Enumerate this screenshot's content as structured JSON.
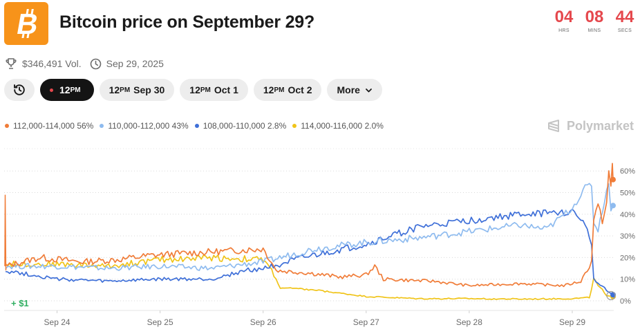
{
  "header": {
    "title": "Bitcoin price on September 29?",
    "logo_icon": "bitcoin-icon",
    "countdown": [
      {
        "value": "04",
        "label": "HRS"
      },
      {
        "value": "08",
        "label": "MINS"
      },
      {
        "value": "44",
        "label": "SECS"
      }
    ]
  },
  "meta": {
    "volume": "$346,491 Vol.",
    "date": "Sep 29, 2025",
    "volume_icon": "trophy-icon",
    "date_icon": "clock-icon"
  },
  "pills": {
    "history_icon": "history-icon",
    "items": [
      {
        "time": "12",
        "ampm": "PM",
        "date": "",
        "active": true
      },
      {
        "time": "12",
        "ampm": "PM",
        "date": "Sep 30",
        "active": false
      },
      {
        "time": "12",
        "ampm": "PM",
        "date": "Oct 1",
        "active": false
      },
      {
        "time": "12",
        "ampm": "PM",
        "date": "Oct 2",
        "active": false
      }
    ],
    "more_label": "More"
  },
  "brand": "Polymarket",
  "gain_label": "+ $1",
  "colors": {
    "orange": "#f07c38",
    "lightblue": "#8ebbef",
    "blue": "#3e6fd8",
    "yellow": "#f0c419",
    "green": "#2fae60",
    "accent_red": "#e5484d"
  },
  "chart_data": {
    "type": "line",
    "title": "",
    "xlabel": "",
    "ylabel": "",
    "x_ticks": [
      "Sep 24",
      "Sep 25",
      "Sep 26",
      "Sep 27",
      "Sep 28",
      "Sep 29"
    ],
    "y_ticks": [
      "0%",
      "10%",
      "20%",
      "30%",
      "40%",
      "50%",
      "60%"
    ],
    "ylim": [
      0,
      65
    ],
    "grid": true,
    "legend_position": "top-left",
    "x_start": "Sep 23, 2025 12:00",
    "x_end": "Sep 29, 2025 09:30",
    "series": [
      {
        "name": "112,000-114,000",
        "legend_value": "56%",
        "color": "#f07c38",
        "points": [
          [
            "Sep 23, 2025 12:00",
            16
          ],
          [
            "Sep 23, 2025 20:00",
            20
          ],
          [
            "Sep 24, 2025 06:00",
            18
          ],
          [
            "Sep 24, 2025 14:00",
            19
          ],
          [
            "Sep 24, 2025 22:00",
            21
          ],
          [
            "Sep 25, 2025 06:00",
            22
          ],
          [
            "Sep 25, 2025 16:00",
            23
          ],
          [
            "Sep 26, 2025 00:00",
            24
          ],
          [
            "Sep 26, 2025 02:00",
            18
          ],
          [
            "Sep 26, 2025 03:00",
            14
          ],
          [
            "Sep 26, 2025 10:00",
            13
          ],
          [
            "Sep 26, 2025 18:00",
            11
          ],
          [
            "Sep 27, 2025 00:00",
            12
          ],
          [
            "Sep 27, 2025 02:00",
            16
          ],
          [
            "Sep 27, 2025 04:00",
            10
          ],
          [
            "Sep 27, 2025 16:00",
            9
          ],
          [
            "Sep 28, 2025 00:00",
            7
          ],
          [
            "Sep 28, 2025 12:00",
            8
          ],
          [
            "Sep 28, 2025 22:00",
            7
          ],
          [
            "Sep 29, 2025 02:00",
            9
          ],
          [
            "Sep 29, 2025 04:30",
            18
          ],
          [
            "Sep 29, 2025 05:00",
            38
          ],
          [
            "Sep 29, 2025 06:00",
            44
          ],
          [
            "Sep 29, 2025 07:00",
            37
          ],
          [
            "Sep 29, 2025 08:00",
            45
          ],
          [
            "Sep 29, 2025 08:30",
            60
          ],
          [
            "Sep 29, 2025 09:00",
            52
          ],
          [
            "Sep 29, 2025 09:20",
            63
          ],
          [
            "Sep 29, 2025 09:30",
            56
          ]
        ]
      },
      {
        "name": "110,000-112,000",
        "legend_value": "43%",
        "color": "#8ebbef",
        "points": [
          [
            "Sep 23, 2025 12:00",
            16
          ],
          [
            "Sep 24, 2025 00:00",
            16
          ],
          [
            "Sep 24, 2025 12:00",
            15
          ],
          [
            "Sep 25, 2025 00:00",
            16
          ],
          [
            "Sep 25, 2025 12:00",
            15
          ],
          [
            "Sep 26, 2025 00:00",
            18
          ],
          [
            "Sep 26, 2025 12:00",
            24
          ],
          [
            "Sep 27, 2025 00:00",
            27
          ],
          [
            "Sep 27, 2025 12:00",
            29
          ],
          [
            "Sep 28, 2025 00:00",
            32
          ],
          [
            "Sep 28, 2025 12:00",
            35
          ],
          [
            "Sep 28, 2025 18:00",
            33
          ],
          [
            "Sep 29, 2025 00:00",
            43
          ],
          [
            "Sep 29, 2025 03:00",
            52
          ],
          [
            "Sep 29, 2025 04:30",
            54
          ],
          [
            "Sep 29, 2025 05:00",
            36
          ],
          [
            "Sep 29, 2025 06:00",
            33
          ],
          [
            "Sep 29, 2025 07:00",
            42
          ],
          [
            "Sep 29, 2025 08:00",
            50
          ],
          [
            "Sep 29, 2025 08:30",
            55
          ],
          [
            "Sep 29, 2025 09:00",
            43
          ],
          [
            "Sep 29, 2025 09:30",
            44
          ]
        ]
      },
      {
        "name": "108,000-110,000",
        "legend_value": "2.8%",
        "color": "#3e6fd8",
        "points": [
          [
            "Sep 23, 2025 12:00",
            14
          ],
          [
            "Sep 24, 2025 00:00",
            10
          ],
          [
            "Sep 24, 2025 12:00",
            9
          ],
          [
            "Sep 25, 2025 00:00",
            10
          ],
          [
            "Sep 25, 2025 12:00",
            10
          ],
          [
            "Sep 25, 2025 20:00",
            14
          ],
          [
            "Sep 26, 2025 00:00",
            15
          ],
          [
            "Sep 26, 2025 12:00",
            21
          ],
          [
            "Sep 27, 2025 00:00",
            26
          ],
          [
            "Sep 27, 2025 12:00",
            34
          ],
          [
            "Sep 28, 2025 00:00",
            37
          ],
          [
            "Sep 28, 2025 12:00",
            40
          ],
          [
            "Sep 29, 2025 00:00",
            41
          ],
          [
            "Sep 29, 2025 02:00",
            38
          ],
          [
            "Sep 29, 2025 04:00",
            30
          ],
          [
            "Sep 29, 2025 04:30",
            25
          ],
          [
            "Sep 29, 2025 05:00",
            11
          ],
          [
            "Sep 29, 2025 06:00",
            8
          ],
          [
            "Sep 29, 2025 07:30",
            6
          ],
          [
            "Sep 29, 2025 08:30",
            4
          ],
          [
            "Sep 29, 2025 09:30",
            2.8
          ]
        ]
      },
      {
        "name": "114,000-116,000",
        "legend_value": "2.0%",
        "color": "#f0c419",
        "points": [
          [
            "Sep 23, 2025 12:00",
            17
          ],
          [
            "Sep 24, 2025 00:00",
            17
          ],
          [
            "Sep 24, 2025 12:00",
            16
          ],
          [
            "Sep 25, 2025 00:00",
            19
          ],
          [
            "Sep 25, 2025 12:00",
            20
          ],
          [
            "Sep 26, 2025 00:00",
            19
          ],
          [
            "Sep 26, 2025 02:00",
            14
          ],
          [
            "Sep 26, 2025 04:00",
            6
          ],
          [
            "Sep 26, 2025 12:00",
            5
          ],
          [
            "Sep 27, 2025 00:00",
            2
          ],
          [
            "Sep 27, 2025 12:00",
            1
          ],
          [
            "Sep 28, 2025 00:00",
            1
          ],
          [
            "Sep 28, 2025 12:00",
            0.8
          ],
          [
            "Sep 29, 2025 00:00",
            1
          ],
          [
            "Sep 29, 2025 04:00",
            1.5
          ],
          [
            "Sep 29, 2025 05:00",
            10
          ],
          [
            "Sep 29, 2025 06:00",
            7
          ],
          [
            "Sep 29, 2025 07:00",
            5
          ],
          [
            "Sep 29, 2025 08:00",
            2
          ],
          [
            "Sep 29, 2025 09:30",
            2
          ]
        ]
      }
    ]
  }
}
